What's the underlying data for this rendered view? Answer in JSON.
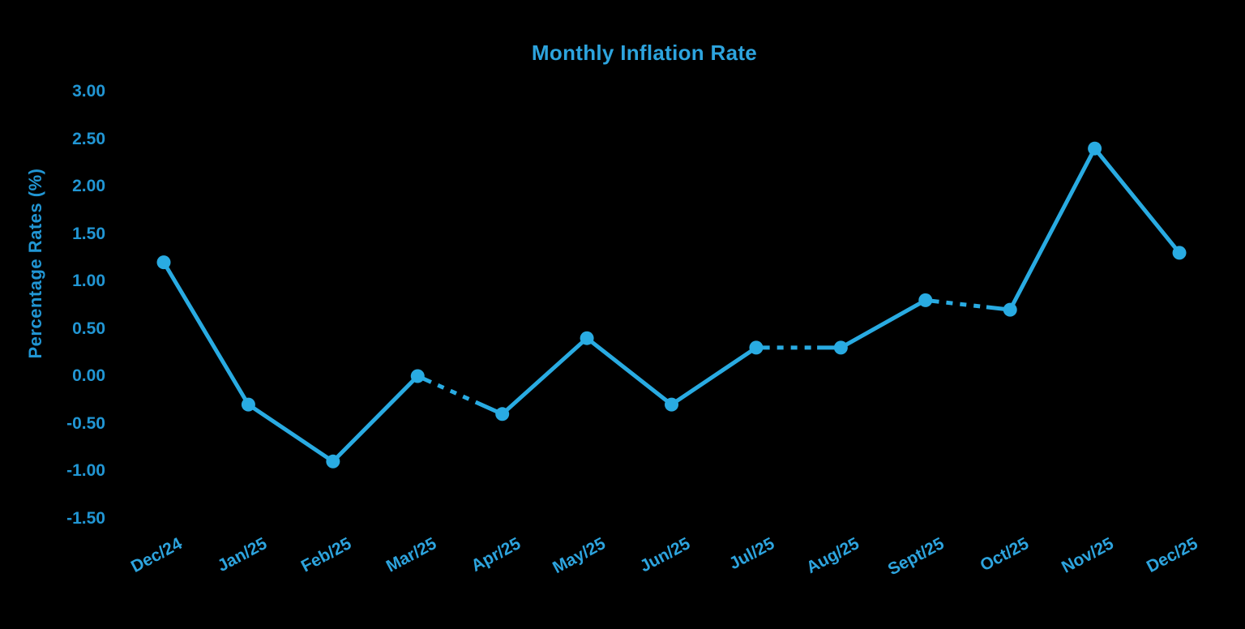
{
  "chart_data": {
    "type": "line",
    "title": "Monthly Inflation Rate",
    "xlabel": "",
    "ylabel": "Percentage Rates (%)",
    "categories": [
      "Dec/24",
      "Jan/25",
      "Feb/25",
      "Mar/25",
      "Apr/25",
      "May/25",
      "Jun/25",
      "Jul/25",
      "Aug/25",
      "Sept/25",
      "Oct/25",
      "Nov/25",
      "Dec/25"
    ],
    "series": [
      {
        "name": "Monthly Inflation Rate",
        "values": [
          1.2,
          -0.3,
          -0.9,
          0.0,
          -0.4,
          0.4,
          -0.3,
          0.3,
          0.3,
          0.8,
          0.7,
          2.4,
          1.3
        ]
      }
    ],
    "ylim": [
      -1.5,
      3.0
    ],
    "ytick_step": 0.5,
    "ytick_labels": [
      "3.00",
      "2.50",
      "2.00",
      "1.50",
      "1.00",
      "0.50",
      "0.00",
      "-0.50",
      "-1.00",
      "-1.50"
    ],
    "ytick_values": [
      3.0,
      2.5,
      2.0,
      1.5,
      1.0,
      0.5,
      0.0,
      -0.5,
      -1.0,
      -1.5
    ],
    "grid": false,
    "legend": "none",
    "marker": "circle",
    "background_color": "#000000",
    "line_color": "#29abe2",
    "marker_color": "#29abe2",
    "title_color": "#2da4de",
    "tick_label_color": "#2196d4",
    "occluded_segment_start_indices": [
      3,
      7,
      9
    ],
    "occluded_segments_note": "black data-label text invisibly overlaps the line after Mar/25, Jul/25 and Sept/25, creating dashed-looking gaps"
  }
}
